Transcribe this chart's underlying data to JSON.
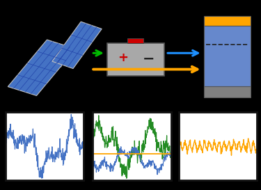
{
  "bg_color": "#000000",
  "bottom_strip_color": "#1a1a1a",
  "panel_bg": "#ffffff",
  "plot1_color": "#4472c4",
  "plot2_color_green": "#228B22",
  "plot2_color_blue": "#4472c4",
  "plot2_color_orange": "#ffa500",
  "plot3_color": "#ffa500",
  "arrow_green": "#00bb00",
  "arrow_blue": "#1e90ff",
  "arrow_orange": "#ffa500",
  "battery_color": "#a8a8a8",
  "tank_top_color": "#ffa500",
  "tank_body_color": "#6688cc",
  "tank_bottom_color": "#808080",
  "solar_blue": "#4472c4",
  "solar_dark": "#2244aa",
  "solar_frame": "#c0c0c0",
  "seed": 42,
  "n_points": 300
}
